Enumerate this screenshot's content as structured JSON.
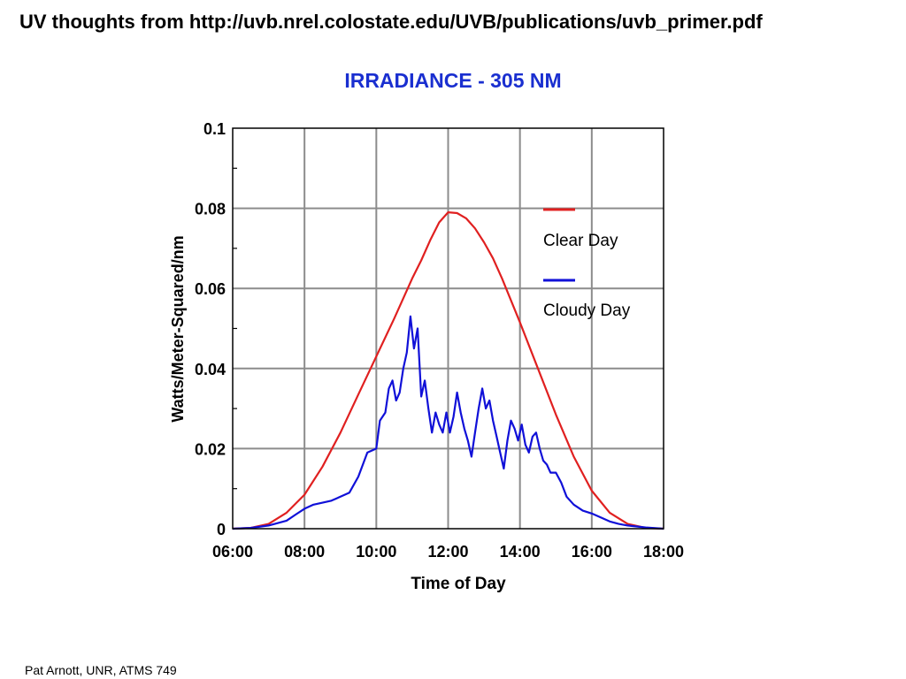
{
  "slide": {
    "title": "UV thoughts from http://uvb.nrel.colostate.edu/UVB/publications/uvb_primer.pdf",
    "footer": "Pat Arnott, UNR, ATMS 749"
  },
  "colors": {
    "title_blue": "#1a2fd0",
    "clear_day": "#e02020",
    "cloudy_day": "#1010d8",
    "grid": "#8c8c8c",
    "frame": "#000000"
  },
  "chart_data": {
    "type": "line",
    "title": "IRRADIANCE - 305 NM",
    "xlabel": "Time of Day",
    "ylabel": "Watts/Meter-Squared/nm",
    "x_unit": "hours",
    "xlim": [
      6,
      18
    ],
    "ylim": [
      0,
      0.1
    ],
    "xticks": [
      6,
      8,
      10,
      12,
      14,
      16,
      18
    ],
    "xtick_labels": [
      "06:00",
      "08:00",
      "10:00",
      "12:00",
      "14:00",
      "16:00",
      "18:00"
    ],
    "yticks": [
      0,
      0.02,
      0.04,
      0.06,
      0.08,
      0.1
    ],
    "ytick_labels": [
      "0",
      "0.02",
      "0.04",
      "0.06",
      "0.08",
      "0.1"
    ],
    "grid": true,
    "legend_position": "top-right",
    "series": [
      {
        "name": "Clear Day",
        "color": "#e02020",
        "points": [
          [
            6.0,
            0.0
          ],
          [
            6.5,
            0.0002
          ],
          [
            7.0,
            0.0012
          ],
          [
            7.5,
            0.004
          ],
          [
            8.0,
            0.0085
          ],
          [
            8.5,
            0.0155
          ],
          [
            9.0,
            0.024
          ],
          [
            9.5,
            0.0335
          ],
          [
            10.0,
            0.043
          ],
          [
            10.5,
            0.0525
          ],
          [
            11.0,
            0.0625
          ],
          [
            11.25,
            0.067
          ],
          [
            11.5,
            0.072
          ],
          [
            11.75,
            0.0765
          ],
          [
            12.0,
            0.079
          ],
          [
            12.25,
            0.0788
          ],
          [
            12.5,
            0.0775
          ],
          [
            12.75,
            0.075
          ],
          [
            13.0,
            0.0715
          ],
          [
            13.25,
            0.0675
          ],
          [
            13.5,
            0.0625
          ],
          [
            14.0,
            0.0515
          ],
          [
            14.5,
            0.04
          ],
          [
            15.0,
            0.0285
          ],
          [
            15.5,
            0.018
          ],
          [
            16.0,
            0.0095
          ],
          [
            16.5,
            0.004
          ],
          [
            17.0,
            0.0012
          ],
          [
            17.5,
            0.0002
          ],
          [
            18.0,
            0.0
          ]
        ]
      },
      {
        "name": "Cloudy Day",
        "color": "#1010d8",
        "points": [
          [
            6.0,
            0.0
          ],
          [
            6.5,
            0.0002
          ],
          [
            7.0,
            0.0008
          ],
          [
            7.5,
            0.002
          ],
          [
            7.75,
            0.0035
          ],
          [
            8.0,
            0.005
          ],
          [
            8.25,
            0.006
          ],
          [
            8.5,
            0.0065
          ],
          [
            8.75,
            0.007
          ],
          [
            9.0,
            0.008
          ],
          [
            9.25,
            0.009
          ],
          [
            9.5,
            0.013
          ],
          [
            9.75,
            0.019
          ],
          [
            10.0,
            0.02
          ],
          [
            10.1,
            0.027
          ],
          [
            10.25,
            0.029
          ],
          [
            10.35,
            0.035
          ],
          [
            10.45,
            0.037
          ],
          [
            10.55,
            0.032
          ],
          [
            10.65,
            0.034
          ],
          [
            10.75,
            0.04
          ],
          [
            10.85,
            0.044
          ],
          [
            10.95,
            0.053
          ],
          [
            11.05,
            0.045
          ],
          [
            11.15,
            0.05
          ],
          [
            11.25,
            0.033
          ],
          [
            11.35,
            0.037
          ],
          [
            11.45,
            0.03
          ],
          [
            11.55,
            0.024
          ],
          [
            11.65,
            0.029
          ],
          [
            11.75,
            0.026
          ],
          [
            11.85,
            0.024
          ],
          [
            11.95,
            0.029
          ],
          [
            12.05,
            0.024
          ],
          [
            12.15,
            0.028
          ],
          [
            12.25,
            0.034
          ],
          [
            12.35,
            0.029
          ],
          [
            12.45,
            0.025
          ],
          [
            12.55,
            0.022
          ],
          [
            12.65,
            0.018
          ],
          [
            12.75,
            0.024
          ],
          [
            12.85,
            0.03
          ],
          [
            12.95,
            0.035
          ],
          [
            13.05,
            0.03
          ],
          [
            13.15,
            0.032
          ],
          [
            13.25,
            0.027
          ],
          [
            13.35,
            0.023
          ],
          [
            13.45,
            0.019
          ],
          [
            13.55,
            0.015
          ],
          [
            13.65,
            0.022
          ],
          [
            13.75,
            0.027
          ],
          [
            13.85,
            0.025
          ],
          [
            13.95,
            0.022
          ],
          [
            14.05,
            0.026
          ],
          [
            14.15,
            0.021
          ],
          [
            14.25,
            0.019
          ],
          [
            14.35,
            0.023
          ],
          [
            14.45,
            0.024
          ],
          [
            14.55,
            0.02
          ],
          [
            14.65,
            0.017
          ],
          [
            14.75,
            0.016
          ],
          [
            14.85,
            0.014
          ],
          [
            15.0,
            0.014
          ],
          [
            15.15,
            0.0115
          ],
          [
            15.3,
            0.008
          ],
          [
            15.5,
            0.006
          ],
          [
            15.75,
            0.0045
          ],
          [
            16.0,
            0.0038
          ],
          [
            16.25,
            0.0028
          ],
          [
            16.5,
            0.0018
          ],
          [
            16.75,
            0.0012
          ],
          [
            17.0,
            0.0008
          ],
          [
            17.5,
            0.0003
          ],
          [
            18.0,
            0.0
          ]
        ]
      }
    ]
  }
}
